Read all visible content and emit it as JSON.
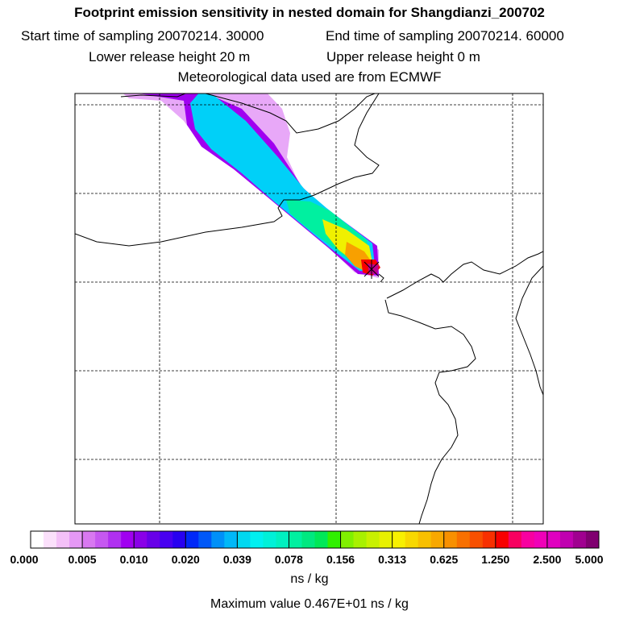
{
  "header": {
    "title": "Footprint emission sensitivity in nested domain for Shangdianzi_200702",
    "start_time": "Start time of sampling 20070214. 30000",
    "end_time": "End time of sampling 20070214. 60000",
    "lower_height": "Lower release height   20 m",
    "upper_height": "Upper release height    0 m",
    "met_data": "Meteorological data used are from ECMWF"
  },
  "colorbar": {
    "tick_labels": [
      "0.000",
      "0.005",
      "0.010",
      "0.020",
      "0.039",
      "0.078",
      "0.156",
      "0.313",
      "0.625",
      "1.250",
      "2.500",
      "5.000"
    ],
    "colors": [
      "#ffffff",
      "#fbe0fb",
      "#f4c0f8",
      "#e598f5",
      "#d878f0",
      "#c658f0",
      "#b030f0",
      "#a000f0",
      "#8a00e8",
      "#6800e8",
      "#4800f0",
      "#2800f0",
      "#0028f8",
      "#0058f8",
      "#0090f8",
      "#00b8f8",
      "#00d8f0",
      "#00f0f0",
      "#00f0d8",
      "#00f0c0",
      "#00f0a0",
      "#00e880",
      "#00e858",
      "#30f000",
      "#80f000",
      "#a8f000",
      "#c8f000",
      "#e8f000",
      "#f8f000",
      "#f8d800",
      "#f8c000",
      "#f8a800",
      "#f89000",
      "#f87000",
      "#f85000",
      "#f83000",
      "#f80000",
      "#f80060",
      "#f800a0",
      "#f000b8",
      "#e000c0",
      "#c000b0",
      "#a00090",
      "#800070"
    ],
    "units": "ns / kg",
    "max_value": "Maximum value  0.467E+01 ns / kg"
  },
  "map": {
    "station": "Shangdianzi",
    "plume_colors": [
      "#e8a8f8",
      "#a000f0",
      "#00d0f8",
      "#00f0e0",
      "#00f0a0",
      "#80f000",
      "#f0f000",
      "#f8a000",
      "#f80000",
      "#c00090"
    ]
  }
}
